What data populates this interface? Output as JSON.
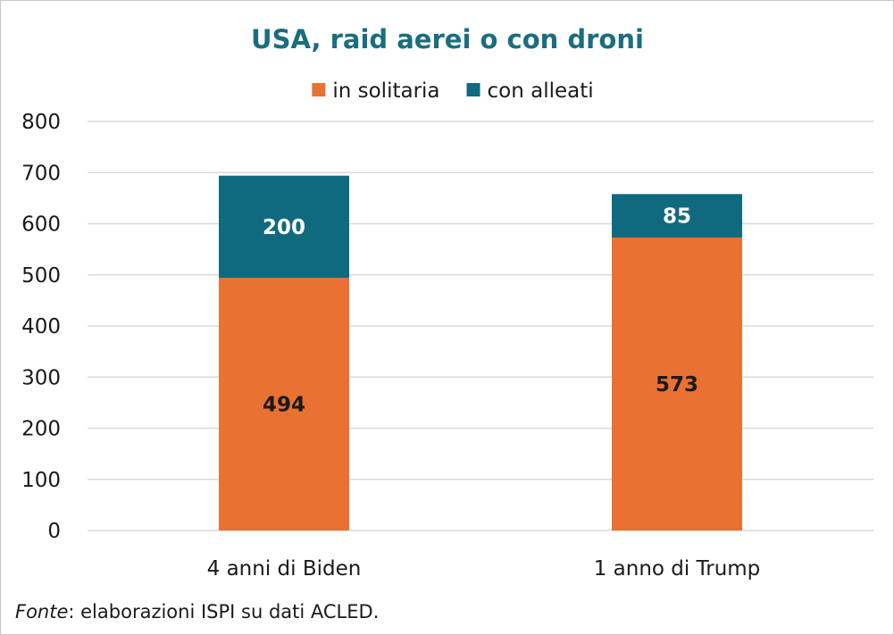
{
  "chart_data": {
    "type": "bar",
    "stacked": true,
    "title": "USA, raid aerei o con droni",
    "categories": [
      "4 anni di Biden",
      "1 anno di Trump"
    ],
    "series": [
      {
        "name": "in solitaria",
        "color": "#e97132",
        "values": [
          494,
          573
        ],
        "label_color": "#1a1a1a"
      },
      {
        "name": "con alleati",
        "color": "#0f6a80",
        "values": [
          200,
          85
        ],
        "label_color": "#ffffff"
      }
    ],
    "ylim": [
      0,
      800
    ],
    "yticks": [
      "0",
      "100",
      "200",
      "300",
      "400",
      "500",
      "600",
      "700",
      "800"
    ],
    "grid": true,
    "legend": "top"
  },
  "source": {
    "prefix": "Fonte",
    "text": ": elaborazioni ISPI su dati ACLED."
  }
}
